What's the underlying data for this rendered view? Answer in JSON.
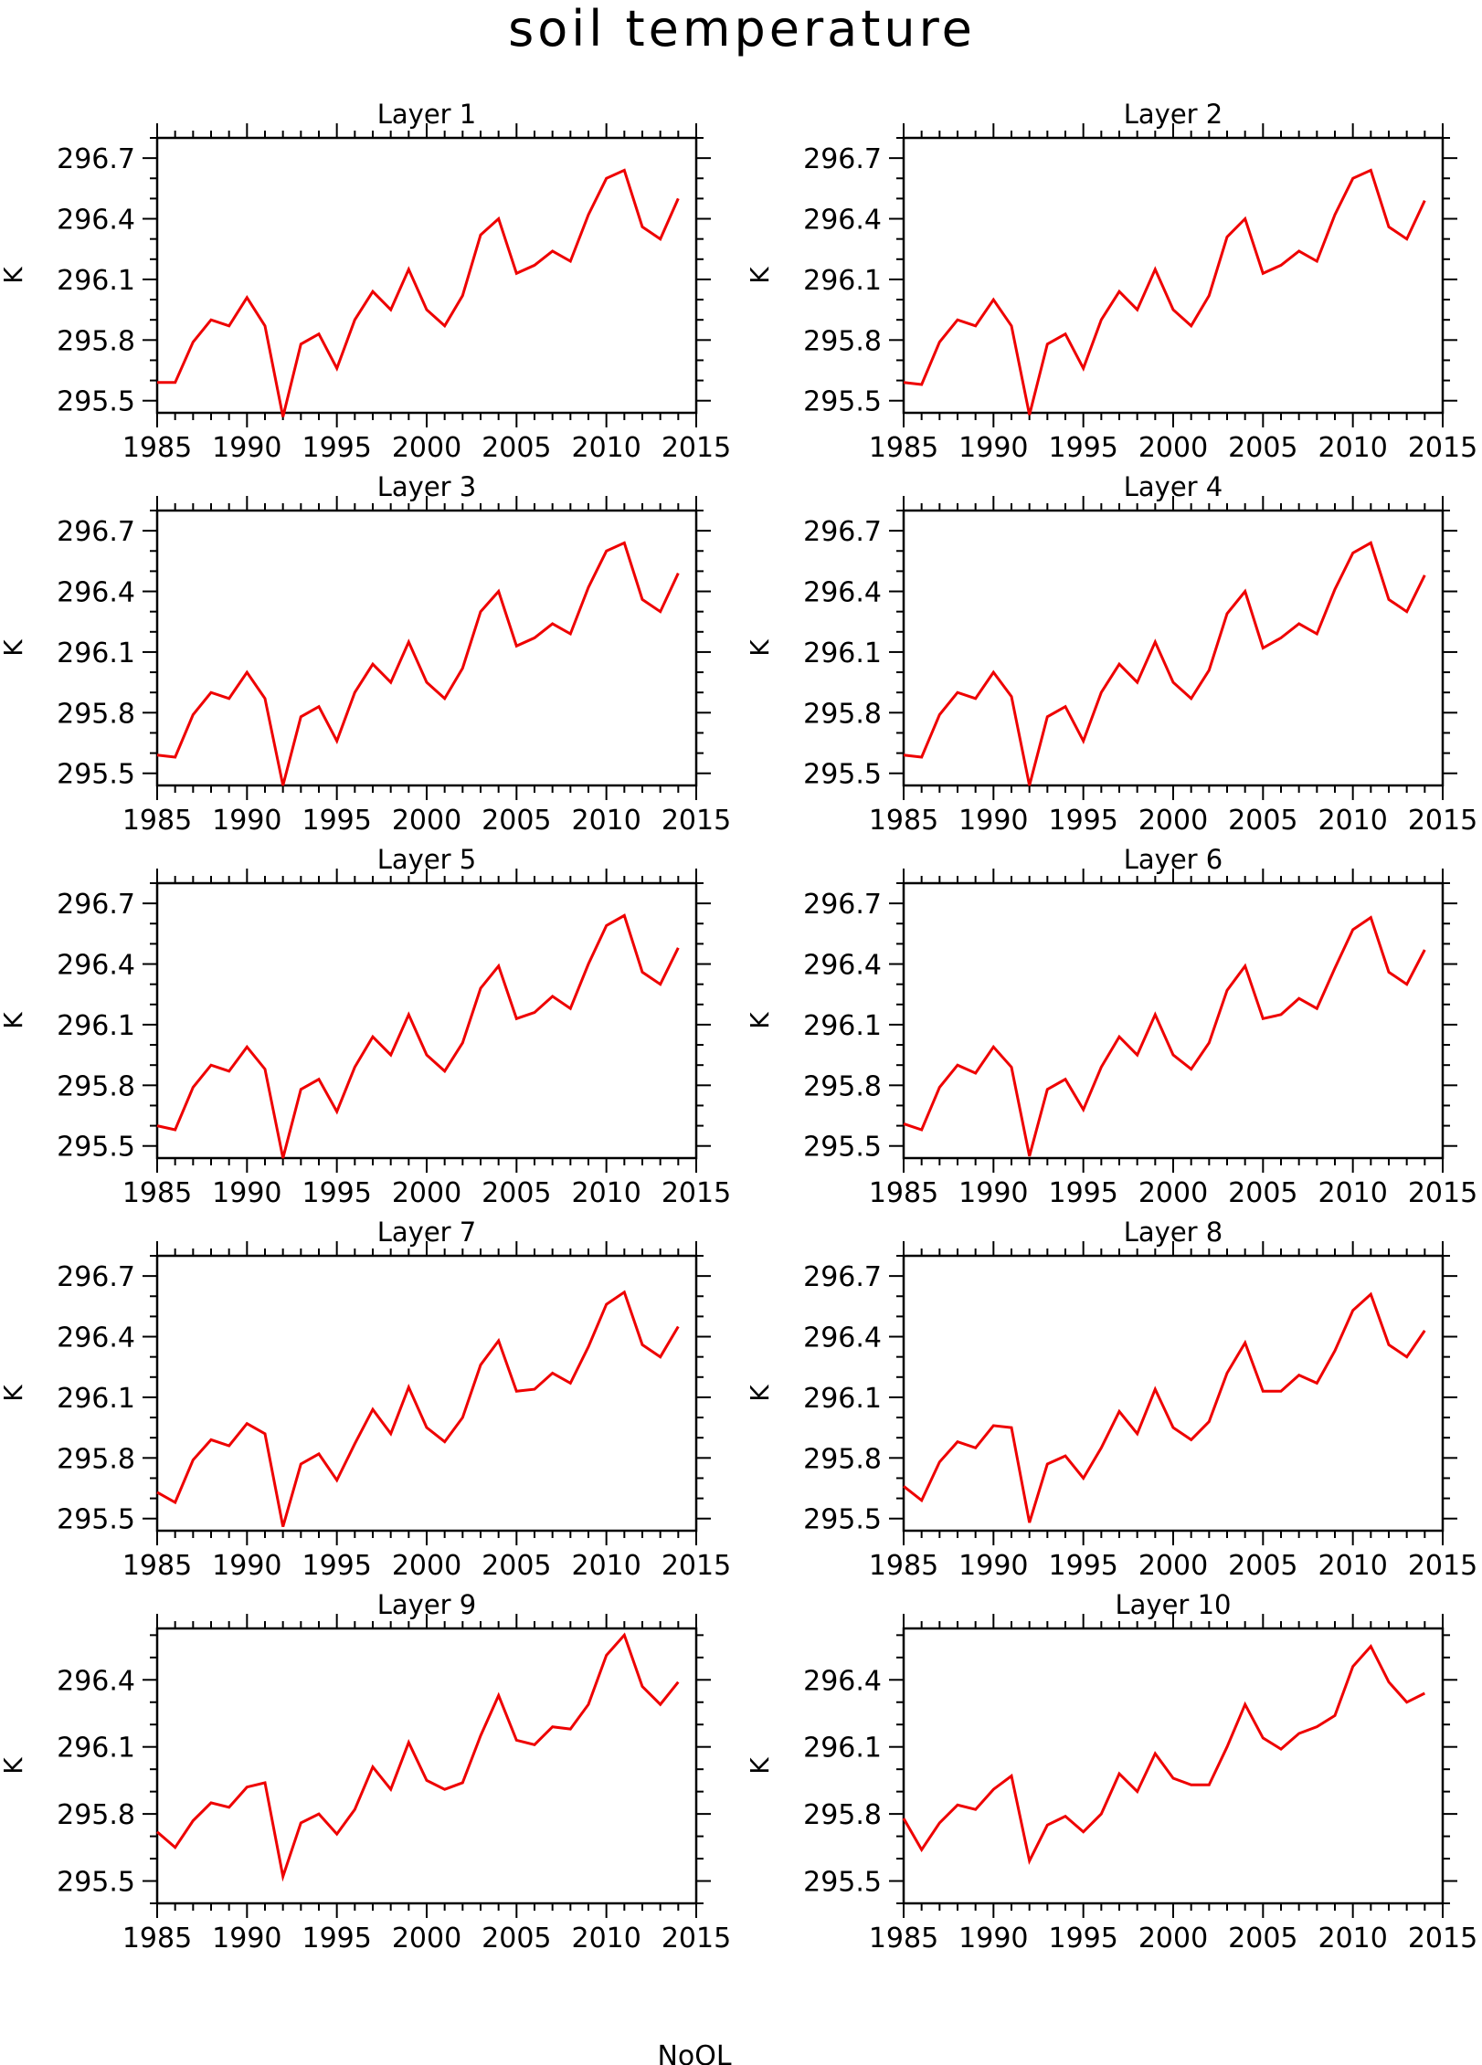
{
  "title": "soil temperature",
  "footer_text": "NoOL",
  "colors": {
    "line": "#ee0000",
    "axis": "#000000"
  },
  "chart_data": [
    {
      "type": "line",
      "title": "Layer 1",
      "ylabel": "K",
      "xlim": [
        1985,
        2015
      ],
      "ylim": [
        295.44,
        296.8
      ],
      "xticks": [
        1985,
        1990,
        1995,
        2000,
        2005,
        2010,
        2015
      ],
      "yticks": [
        295.5,
        295.8,
        296.1,
        296.4,
        296.7
      ],
      "ytick_labels": [
        "295.5",
        "295.8",
        "296.1",
        "296.4",
        "296.7"
      ],
      "line_color": "#ee0000",
      "x": [
        1985,
        1986,
        1987,
        1988,
        1989,
        1990,
        1991,
        1992,
        1993,
        1994,
        1995,
        1996,
        1997,
        1998,
        1999,
        2000,
        2001,
        2002,
        2003,
        2004,
        2005,
        2006,
        2007,
        2008,
        2009,
        2010,
        2011,
        2012,
        2013,
        2014
      ],
      "y": [
        295.59,
        295.59,
        295.79,
        295.9,
        295.87,
        296.01,
        295.87,
        295.42,
        295.78,
        295.83,
        295.66,
        295.9,
        296.04,
        295.95,
        296.15,
        295.95,
        295.87,
        296.02,
        296.32,
        296.4,
        296.13,
        296.17,
        296.24,
        296.19,
        296.42,
        296.6,
        296.64,
        296.36,
        296.3,
        296.5
      ]
    },
    {
      "type": "line",
      "title": "Layer 2",
      "ylabel": "K",
      "xlim": [
        1985,
        2015
      ],
      "ylim": [
        295.44,
        296.8
      ],
      "xticks": [
        1985,
        1990,
        1995,
        2000,
        2005,
        2010,
        2015
      ],
      "yticks": [
        295.5,
        295.8,
        296.1,
        296.4,
        296.7
      ],
      "ytick_labels": [
        "295.5",
        "295.8",
        "296.1",
        "296.4",
        "296.7"
      ],
      "line_color": "#ee0000",
      "x": [
        1985,
        1986,
        1987,
        1988,
        1989,
        1990,
        1991,
        1992,
        1993,
        1994,
        1995,
        1996,
        1997,
        1998,
        1999,
        2000,
        2001,
        2002,
        2003,
        2004,
        2005,
        2006,
        2007,
        2008,
        2009,
        2010,
        2011,
        2012,
        2013,
        2014
      ],
      "y": [
        295.59,
        295.58,
        295.79,
        295.9,
        295.87,
        296.0,
        295.87,
        295.43,
        295.78,
        295.83,
        295.66,
        295.9,
        296.04,
        295.95,
        296.15,
        295.95,
        295.87,
        296.02,
        296.31,
        296.4,
        296.13,
        296.17,
        296.24,
        296.19,
        296.42,
        296.6,
        296.64,
        296.36,
        296.3,
        296.49
      ]
    },
    {
      "type": "line",
      "title": "Layer 3",
      "ylabel": "K",
      "xlim": [
        1985,
        2015
      ],
      "ylim": [
        295.44,
        296.8
      ],
      "xticks": [
        1985,
        1990,
        1995,
        2000,
        2005,
        2010,
        2015
      ],
      "yticks": [
        295.5,
        295.8,
        296.1,
        296.4,
        296.7
      ],
      "ytick_labels": [
        "295.5",
        "295.8",
        "296.1",
        "296.4",
        "296.7"
      ],
      "line_color": "#ee0000",
      "x": [
        1985,
        1986,
        1987,
        1988,
        1989,
        1990,
        1991,
        1992,
        1993,
        1994,
        1995,
        1996,
        1997,
        1998,
        1999,
        2000,
        2001,
        2002,
        2003,
        2004,
        2005,
        2006,
        2007,
        2008,
        2009,
        2010,
        2011,
        2012,
        2013,
        2014
      ],
      "y": [
        295.59,
        295.58,
        295.79,
        295.9,
        295.87,
        296.0,
        295.87,
        295.44,
        295.78,
        295.83,
        295.66,
        295.9,
        296.04,
        295.95,
        296.15,
        295.95,
        295.87,
        296.02,
        296.3,
        296.4,
        296.13,
        296.17,
        296.24,
        296.19,
        296.42,
        296.6,
        296.64,
        296.36,
        296.3,
        296.49
      ]
    },
    {
      "type": "line",
      "title": "Layer 4",
      "ylabel": "K",
      "xlim": [
        1985,
        2015
      ],
      "ylim": [
        295.44,
        296.8
      ],
      "xticks": [
        1985,
        1990,
        1995,
        2000,
        2005,
        2010,
        2015
      ],
      "yticks": [
        295.5,
        295.8,
        296.1,
        296.4,
        296.7
      ],
      "ytick_labels": [
        "295.5",
        "295.8",
        "296.1",
        "296.4",
        "296.7"
      ],
      "line_color": "#ee0000",
      "x": [
        1985,
        1986,
        1987,
        1988,
        1989,
        1990,
        1991,
        1992,
        1993,
        1994,
        1995,
        1996,
        1997,
        1998,
        1999,
        2000,
        2001,
        2002,
        2003,
        2004,
        2005,
        2006,
        2007,
        2008,
        2009,
        2010,
        2011,
        2012,
        2013,
        2014
      ],
      "y": [
        295.59,
        295.58,
        295.79,
        295.9,
        295.87,
        296.0,
        295.88,
        295.44,
        295.78,
        295.83,
        295.66,
        295.9,
        296.04,
        295.95,
        296.15,
        295.95,
        295.87,
        296.01,
        296.29,
        296.4,
        296.12,
        296.17,
        296.24,
        296.19,
        296.41,
        296.59,
        296.64,
        296.36,
        296.3,
        296.48
      ]
    },
    {
      "type": "line",
      "title": "Layer 5",
      "ylabel": "K",
      "xlim": [
        1985,
        2015
      ],
      "ylim": [
        295.44,
        296.8
      ],
      "xticks": [
        1985,
        1990,
        1995,
        2000,
        2005,
        2010,
        2015
      ],
      "yticks": [
        295.5,
        295.8,
        296.1,
        296.4,
        296.7
      ],
      "ytick_labels": [
        "295.5",
        "295.8",
        "296.1",
        "296.4",
        "296.7"
      ],
      "line_color": "#ee0000",
      "x": [
        1985,
        1986,
        1987,
        1988,
        1989,
        1990,
        1991,
        1992,
        1993,
        1994,
        1995,
        1996,
        1997,
        1998,
        1999,
        2000,
        2001,
        2002,
        2003,
        2004,
        2005,
        2006,
        2007,
        2008,
        2009,
        2010,
        2011,
        2012,
        2013,
        2014
      ],
      "y": [
        295.6,
        295.58,
        295.79,
        295.9,
        295.87,
        295.99,
        295.88,
        295.44,
        295.78,
        295.83,
        295.67,
        295.89,
        296.04,
        295.95,
        296.15,
        295.95,
        295.87,
        296.01,
        296.28,
        296.39,
        296.13,
        296.16,
        296.24,
        296.18,
        296.4,
        296.59,
        296.64,
        296.36,
        296.3,
        296.48
      ]
    },
    {
      "type": "line",
      "title": "Layer 6",
      "ylabel": "K",
      "xlim": [
        1985,
        2015
      ],
      "ylim": [
        295.44,
        296.8
      ],
      "xticks": [
        1985,
        1990,
        1995,
        2000,
        2005,
        2010,
        2015
      ],
      "yticks": [
        295.5,
        295.8,
        296.1,
        296.4,
        296.7
      ],
      "ytick_labels": [
        "295.5",
        "295.8",
        "296.1",
        "296.4",
        "296.7"
      ],
      "line_color": "#ee0000",
      "x": [
        1985,
        1986,
        1987,
        1988,
        1989,
        1990,
        1991,
        1992,
        1993,
        1994,
        1995,
        1996,
        1997,
        1998,
        1999,
        2000,
        2001,
        2002,
        2003,
        2004,
        2005,
        2006,
        2007,
        2008,
        2009,
        2010,
        2011,
        2012,
        2013,
        2014
      ],
      "y": [
        295.61,
        295.58,
        295.79,
        295.9,
        295.86,
        295.99,
        295.89,
        295.45,
        295.78,
        295.83,
        295.68,
        295.89,
        296.04,
        295.95,
        296.15,
        295.95,
        295.88,
        296.01,
        296.27,
        296.39,
        296.13,
        296.15,
        296.23,
        296.18,
        296.38,
        296.57,
        296.63,
        296.36,
        296.3,
        296.47
      ]
    },
    {
      "type": "line",
      "title": "Layer 7",
      "ylabel": "K",
      "xlim": [
        1985,
        2015
      ],
      "ylim": [
        295.44,
        296.8
      ],
      "xticks": [
        1985,
        1990,
        1995,
        2000,
        2005,
        2010,
        2015
      ],
      "yticks": [
        295.5,
        295.8,
        296.1,
        296.4,
        296.7
      ],
      "ytick_labels": [
        "295.5",
        "295.8",
        "296.1",
        "296.4",
        "296.7"
      ],
      "line_color": "#ee0000",
      "x": [
        1985,
        1986,
        1987,
        1988,
        1989,
        1990,
        1991,
        1992,
        1993,
        1994,
        1995,
        1996,
        1997,
        1998,
        1999,
        2000,
        2001,
        2002,
        2003,
        2004,
        2005,
        2006,
        2007,
        2008,
        2009,
        2010,
        2011,
        2012,
        2013,
        2014
      ],
      "y": [
        295.63,
        295.58,
        295.79,
        295.89,
        295.86,
        295.97,
        295.92,
        295.46,
        295.77,
        295.82,
        295.69,
        295.87,
        296.04,
        295.92,
        296.15,
        295.95,
        295.88,
        296.0,
        296.26,
        296.38,
        296.13,
        296.14,
        296.22,
        296.17,
        296.35,
        296.56,
        296.62,
        296.36,
        296.3,
        296.45
      ]
    },
    {
      "type": "line",
      "title": "Layer 8",
      "ylabel": "K",
      "xlim": [
        1985,
        2015
      ],
      "ylim": [
        295.44,
        296.8
      ],
      "xticks": [
        1985,
        1990,
        1995,
        2000,
        2005,
        2010,
        2015
      ],
      "yticks": [
        295.5,
        295.8,
        296.1,
        296.4,
        296.7
      ],
      "ytick_labels": [
        "295.5",
        "295.8",
        "296.1",
        "296.4",
        "296.7"
      ],
      "line_color": "#ee0000",
      "x": [
        1985,
        1986,
        1987,
        1988,
        1989,
        1990,
        1991,
        1992,
        1993,
        1994,
        1995,
        1996,
        1997,
        1998,
        1999,
        2000,
        2001,
        2002,
        2003,
        2004,
        2005,
        2006,
        2007,
        2008,
        2009,
        2010,
        2011,
        2012,
        2013,
        2014
      ],
      "y": [
        295.66,
        295.59,
        295.78,
        295.88,
        295.85,
        295.96,
        295.95,
        295.48,
        295.77,
        295.81,
        295.7,
        295.85,
        296.03,
        295.92,
        296.14,
        295.95,
        295.89,
        295.98,
        296.22,
        296.37,
        296.13,
        296.13,
        296.21,
        296.17,
        296.33,
        296.53,
        296.61,
        296.36,
        296.3,
        296.43
      ]
    },
    {
      "type": "line",
      "title": "Layer 9",
      "ylabel": "K",
      "xlim": [
        1985,
        2015
      ],
      "ylim": [
        295.4,
        296.63
      ],
      "xticks": [
        1985,
        1990,
        1995,
        2000,
        2005,
        2010,
        2015
      ],
      "yticks": [
        295.5,
        295.8,
        296.1,
        296.4
      ],
      "ytick_labels": [
        "295.5",
        "295.8",
        "296.1",
        "296.4"
      ],
      "line_color": "#ee0000",
      "x": [
        1985,
        1986,
        1987,
        1988,
        1989,
        1990,
        1991,
        1992,
        1993,
        1994,
        1995,
        1996,
        1997,
        1998,
        1999,
        2000,
        2001,
        2002,
        2003,
        2004,
        2005,
        2006,
        2007,
        2008,
        2009,
        2010,
        2011,
        2012,
        2013,
        2014
      ],
      "y": [
        295.72,
        295.65,
        295.77,
        295.85,
        295.83,
        295.92,
        295.94,
        295.52,
        295.76,
        295.8,
        295.71,
        295.82,
        296.01,
        295.91,
        296.12,
        295.95,
        295.91,
        295.94,
        296.15,
        296.33,
        296.13,
        296.11,
        296.19,
        296.18,
        296.29,
        296.51,
        296.6,
        296.37,
        296.29,
        296.39
      ]
    },
    {
      "type": "line",
      "title": "Layer 10",
      "ylabel": "K",
      "xlim": [
        1985,
        2015
      ],
      "ylim": [
        295.4,
        296.63
      ],
      "xticks": [
        1985,
        1990,
        1995,
        2000,
        2005,
        2010,
        2015
      ],
      "yticks": [
        295.5,
        295.8,
        296.1,
        296.4
      ],
      "ytick_labels": [
        "295.5",
        "295.8",
        "296.1",
        "296.4"
      ],
      "line_color": "#ee0000",
      "x": [
        1985,
        1986,
        1987,
        1988,
        1989,
        1990,
        1991,
        1992,
        1993,
        1994,
        1995,
        1996,
        1997,
        1998,
        1999,
        2000,
        2001,
        2002,
        2003,
        2004,
        2005,
        2006,
        2007,
        2008,
        2009,
        2010,
        2011,
        2012,
        2013,
        2014
      ],
      "y": [
        295.78,
        295.64,
        295.76,
        295.84,
        295.82,
        295.91,
        295.97,
        295.59,
        295.75,
        295.79,
        295.72,
        295.8,
        295.98,
        295.9,
        296.07,
        295.96,
        295.93,
        295.93,
        296.1,
        296.29,
        296.14,
        296.09,
        296.16,
        296.19,
        296.24,
        296.46,
        296.55,
        296.39,
        296.3,
        296.34
      ]
    }
  ]
}
